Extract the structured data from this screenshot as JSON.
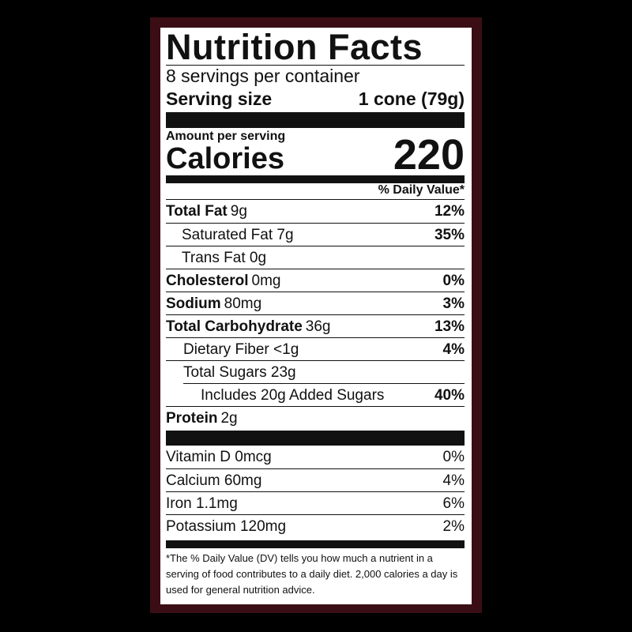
{
  "title": "Nutrition Facts",
  "servings": "8 servings per container",
  "serving_size": {
    "label": "Serving size",
    "value": "1 cone (79g)"
  },
  "amount_per_serving": "Amount per serving",
  "calories": {
    "label": "Calories",
    "value": 220
  },
  "daily_value_header": "% Daily Value*",
  "nutrients": [
    {
      "name": "Total Fat",
      "amount": "9g",
      "dv": "12%"
    },
    {
      "name": "Saturated Fat 7g",
      "dv": "35%"
    },
    {
      "name": "Trans Fat 0g"
    },
    {
      "name": "Cholesterol",
      "amount": "0mg",
      "dv": "0%"
    },
    {
      "name": "Sodium",
      "amount": "80mg",
      "dv": "3%"
    },
    {
      "name": "Total Carbohydrate",
      "amount": "36g",
      "dv": "13%"
    },
    {
      "name": "Dietary Fiber <1g",
      "dv": "4%"
    },
    {
      "name": "Total Sugars 23g"
    },
    {
      "name": "Includes 20g Added Sugars",
      "dv": "40%"
    },
    {
      "name": "Protein",
      "amount": "2g"
    }
  ],
  "vitamins": [
    {
      "name": "Vitamin D 0mcg",
      "dv": "0%"
    },
    {
      "name": "Calcium 60mg",
      "dv": "4%"
    },
    {
      "name": "Iron 1.1mg",
      "dv": "6%"
    },
    {
      "name": "Potassium 120mg",
      "dv": "2%"
    }
  ],
  "footnote": "*The % Daily Value (DV) tells you how much a nutrient in a serving of food contributes to a daily diet. 2,000 calories a day is used for general nutrition advice."
}
